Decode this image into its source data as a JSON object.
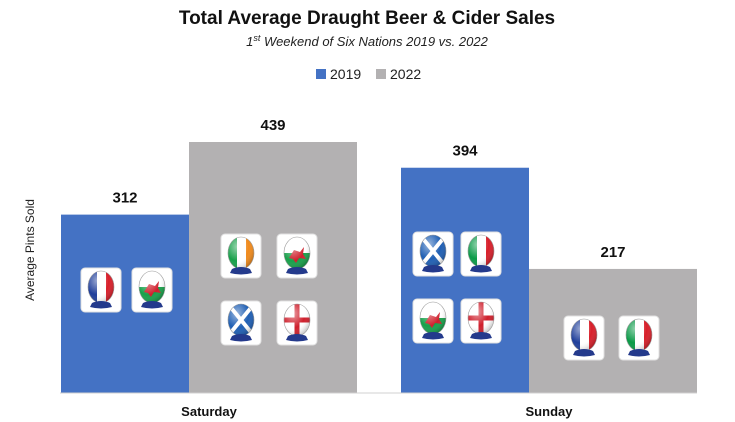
{
  "chart_data": {
    "type": "bar",
    "title": "Total Average Draught Beer & Cider Sales",
    "subtitle_sup": "st",
    "subtitle_pre": "1",
    "subtitle_post": " Weekend of Six Nations 2019 vs. 2022",
    "ylabel": "Average Pints Sold",
    "xlabel": "",
    "categories": [
      "Saturday",
      "Sunday"
    ],
    "series": [
      {
        "name": "2019",
        "values": [
          312,
          394
        ],
        "color": "#4472c4"
      },
      {
        "name": "2022",
        "values": [
          439,
          217
        ],
        "color": "#b3b1b2"
      }
    ],
    "ylim": [
      0,
      439
    ],
    "grid": false,
    "legend": "top-center",
    "flags": {
      "saturday_2019": [
        "france",
        "wales"
      ],
      "saturday_2022": [
        "ireland",
        "wales",
        "scotland",
        "england"
      ],
      "sunday_2019": [
        "scotland",
        "italy",
        "wales",
        "england"
      ],
      "sunday_2022": [
        "france",
        "italy"
      ]
    }
  }
}
